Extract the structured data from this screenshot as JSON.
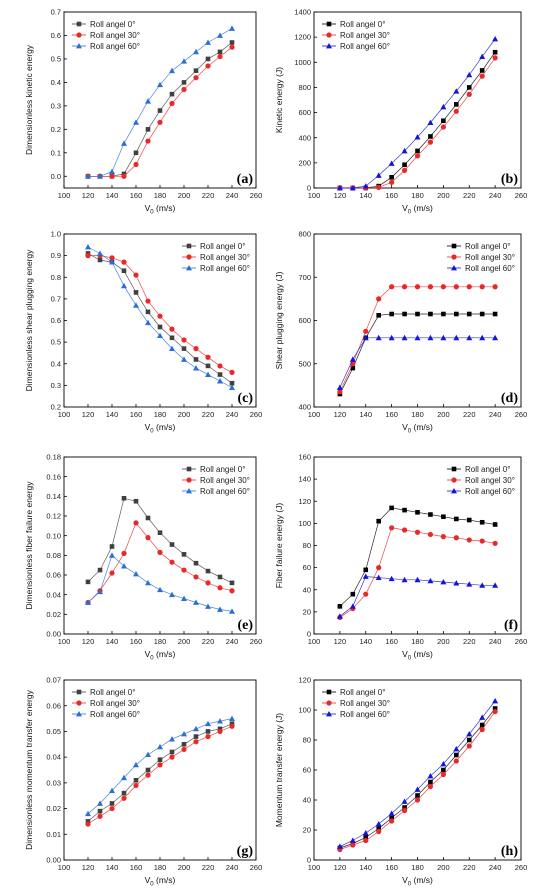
{
  "colors": {
    "roll0": "#404040",
    "roll30": "#e8282a",
    "roll60": "#2b6fd6",
    "roll60_d": "#1515d8"
  },
  "chart_data": [
    {
      "id": "a",
      "type": "line",
      "panel_label": "(a)",
      "xlabel": "V",
      "xlabel_sub": "0",
      "xlabel_unit": " (m/s)",
      "ylabel": "Dimensionless kinetic energy",
      "xlim": [
        100,
        260
      ],
      "ylim": [
        -0.05,
        0.7
      ],
      "xticks": [
        "100",
        "120",
        "140",
        "160",
        "180",
        "200",
        "220",
        "240",
        "260"
      ],
      "yticks": [
        "0.0",
        "0.1",
        "0.2",
        "0.3",
        "0.4",
        "0.5",
        "0.6",
        "0.7"
      ],
      "legend_position": "top-left",
      "marker_style": "filled",
      "series": [
        {
          "name": "Roll angel 0°",
          "marker": "square",
          "x": [
            120,
            130,
            140,
            150,
            160,
            170,
            180,
            190,
            200,
            210,
            220,
            230,
            240
          ],
          "y": [
            0,
            0,
            0,
            0.01,
            0.1,
            0.2,
            0.28,
            0.35,
            0.4,
            0.45,
            0.5,
            0.53,
            0.57
          ]
        },
        {
          "name": "Roll angel 30°",
          "marker": "circle",
          "x": [
            120,
            130,
            140,
            150,
            160,
            170,
            180,
            190,
            200,
            210,
            220,
            230,
            240
          ],
          "y": [
            0,
            0,
            0,
            0,
            0.05,
            0.15,
            0.23,
            0.31,
            0.37,
            0.42,
            0.47,
            0.51,
            0.55
          ]
        },
        {
          "name": "Roll angel 60°",
          "marker": "triangle",
          "x": [
            120,
            130,
            140,
            150,
            160,
            170,
            180,
            190,
            200,
            210,
            220,
            230,
            240
          ],
          "y": [
            0,
            0,
            0.02,
            0.14,
            0.23,
            0.32,
            0.39,
            0.45,
            0.49,
            0.53,
            0.57,
            0.6,
            0.63
          ]
        }
      ]
    },
    {
      "id": "b",
      "type": "line",
      "panel_label": "(b)",
      "xlabel": "V",
      "xlabel_sub": "0",
      "xlabel_unit": " (m/s)",
      "ylabel": "Kinetic energy (J)",
      "xlim": [
        100,
        260
      ],
      "ylim": [
        0,
        1400
      ],
      "xticks": [
        "100",
        "120",
        "140",
        "160",
        "180",
        "200",
        "220",
        "240",
        "260"
      ],
      "yticks": [
        "0",
        "200",
        "400",
        "600",
        "800",
        "1000",
        "1200",
        "1400"
      ],
      "legend_position": "top-left",
      "marker_style": "dark",
      "series": [
        {
          "name": "Roll angel 0°",
          "marker": "square",
          "x": [
            120,
            130,
            140,
            150,
            160,
            170,
            180,
            190,
            200,
            210,
            220,
            230,
            240
          ],
          "y": [
            0,
            0,
            0,
            15,
            85,
            185,
            295,
            410,
            535,
            665,
            800,
            935,
            1080
          ]
        },
        {
          "name": "Roll angel 30°",
          "marker": "circle",
          "x": [
            120,
            130,
            140,
            150,
            160,
            170,
            180,
            190,
            200,
            210,
            220,
            230,
            240
          ],
          "y": [
            0,
            0,
            0,
            5,
            45,
            140,
            255,
            365,
            485,
            610,
            745,
            890,
            1035
          ]
        },
        {
          "name": "Roll angel 60°",
          "marker": "triangle",
          "x": [
            120,
            130,
            140,
            150,
            160,
            170,
            180,
            190,
            200,
            210,
            220,
            230,
            240
          ],
          "y": [
            0,
            0,
            15,
            100,
            195,
            295,
            405,
            520,
            645,
            770,
            900,
            1045,
            1185
          ]
        }
      ]
    },
    {
      "id": "c",
      "type": "line",
      "panel_label": "(c)",
      "xlabel": "V",
      "xlabel_sub": "0",
      "xlabel_unit": " (m/s)",
      "ylabel": "Dimensionless shear plugging energy",
      "xlim": [
        100,
        260
      ],
      "ylim": [
        0.2,
        1.0
      ],
      "xticks": [
        "100",
        "120",
        "140",
        "160",
        "180",
        "200",
        "220",
        "240",
        "260"
      ],
      "yticks": [
        "0.2",
        "0.3",
        "0.4",
        "0.5",
        "0.6",
        "0.7",
        "0.8",
        "0.9",
        "1.0"
      ],
      "legend_position": "top-right",
      "marker_style": "filled",
      "series": [
        {
          "name": "Roll angel 0°",
          "marker": "square",
          "x": [
            120,
            130,
            140,
            150,
            160,
            170,
            180,
            190,
            200,
            210,
            220,
            230,
            240
          ],
          "y": [
            0.91,
            0.88,
            0.87,
            0.83,
            0.73,
            0.64,
            0.57,
            0.52,
            0.47,
            0.42,
            0.39,
            0.35,
            0.31
          ]
        },
        {
          "name": "Roll angel 30°",
          "marker": "circle",
          "x": [
            120,
            130,
            140,
            150,
            160,
            170,
            180,
            190,
            200,
            210,
            220,
            230,
            240
          ],
          "y": [
            0.9,
            0.9,
            0.89,
            0.87,
            0.81,
            0.69,
            0.62,
            0.56,
            0.51,
            0.47,
            0.43,
            0.39,
            0.36
          ]
        },
        {
          "name": "Roll angel 60°",
          "marker": "triangle",
          "x": [
            120,
            130,
            140,
            150,
            160,
            170,
            180,
            190,
            200,
            210,
            220,
            230,
            240
          ],
          "y": [
            0.94,
            0.91,
            0.87,
            0.76,
            0.67,
            0.59,
            0.53,
            0.47,
            0.42,
            0.38,
            0.35,
            0.32,
            0.29
          ]
        }
      ]
    },
    {
      "id": "d",
      "type": "line",
      "panel_label": "(d)",
      "xlabel": "V",
      "xlabel_sub": "0",
      "xlabel_unit": " (m/s)",
      "ylabel": "Shear plugging energy (J)",
      "xlim": [
        100,
        260
      ],
      "ylim": [
        400,
        800
      ],
      "xticks": [
        "100",
        "120",
        "140",
        "160",
        "180",
        "200",
        "220",
        "240",
        "260"
      ],
      "yticks": [
        "400",
        "500",
        "600",
        "700",
        "800"
      ],
      "legend_position": "top-right",
      "marker_style": "dark",
      "series": [
        {
          "name": "Roll angel 0°",
          "marker": "square",
          "x": [
            120,
            130,
            140,
            150,
            160,
            170,
            180,
            190,
            200,
            210,
            220,
            230,
            240
          ],
          "y": [
            430,
            490,
            560,
            612,
            615,
            615,
            615,
            615,
            615,
            615,
            615,
            615,
            615
          ]
        },
        {
          "name": "Roll angel 30°",
          "marker": "circle",
          "x": [
            120,
            130,
            140,
            150,
            160,
            170,
            180,
            190,
            200,
            210,
            220,
            230,
            240
          ],
          "y": [
            435,
            500,
            575,
            650,
            678,
            678,
            678,
            678,
            678,
            678,
            678,
            678,
            678
          ]
        },
        {
          "name": "Roll angel 60°",
          "marker": "triangle",
          "x": [
            120,
            130,
            140,
            150,
            160,
            170,
            180,
            190,
            200,
            210,
            220,
            230,
            240
          ],
          "y": [
            445,
            510,
            560,
            560,
            560,
            560,
            560,
            560,
            560,
            560,
            560,
            560,
            560
          ]
        }
      ]
    },
    {
      "id": "e",
      "type": "line",
      "panel_label": "(e)",
      "xlabel": "V",
      "xlabel_sub": "0",
      "xlabel_unit": " (m/s)",
      "ylabel": "Dimensionless fiber failure energy",
      "xlim": [
        100,
        260
      ],
      "ylim": [
        0.0,
        0.18
      ],
      "xticks": [
        "100",
        "120",
        "140",
        "160",
        "180",
        "200",
        "220",
        "240",
        "260"
      ],
      "yticks": [
        "0.00",
        "0.02",
        "0.04",
        "0.06",
        "0.08",
        "0.10",
        "0.12",
        "0.14",
        "0.16",
        "0.18"
      ],
      "legend_position": "top-right",
      "marker_style": "filled",
      "series": [
        {
          "name": "Roll angel 0°",
          "marker": "square",
          "x": [
            120,
            130,
            140,
            150,
            160,
            170,
            180,
            190,
            200,
            210,
            220,
            230,
            240
          ],
          "y": [
            0.053,
            0.065,
            0.089,
            0.138,
            0.135,
            0.118,
            0.103,
            0.091,
            0.081,
            0.072,
            0.064,
            0.058,
            0.052
          ]
        },
        {
          "name": "Roll angel 30°",
          "marker": "circle",
          "x": [
            120,
            130,
            140,
            150,
            160,
            170,
            180,
            190,
            200,
            210,
            220,
            230,
            240
          ],
          "y": [
            0.032,
            0.044,
            0.062,
            0.082,
            0.113,
            0.098,
            0.083,
            0.073,
            0.065,
            0.058,
            0.052,
            0.047,
            0.044
          ]
        },
        {
          "name": "Roll angel 60°",
          "marker": "triangle",
          "x": [
            120,
            130,
            140,
            150,
            160,
            170,
            180,
            190,
            200,
            210,
            220,
            230,
            240
          ],
          "y": [
            0.032,
            0.043,
            0.08,
            0.069,
            0.061,
            0.052,
            0.045,
            0.04,
            0.036,
            0.032,
            0.028,
            0.025,
            0.023
          ]
        }
      ]
    },
    {
      "id": "f",
      "type": "line",
      "panel_label": "(f)",
      "xlabel": "V",
      "xlabel_sub": "0",
      "xlabel_unit": " (m/s)",
      "ylabel": "Fiber failure energy (J)",
      "xlim": [
        100,
        260
      ],
      "ylim": [
        0,
        160
      ],
      "xticks": [
        "100",
        "120",
        "140",
        "160",
        "180",
        "200",
        "220",
        "240",
        "260"
      ],
      "yticks": [
        "0",
        "20",
        "40",
        "60",
        "80",
        "100",
        "120",
        "140",
        "160"
      ],
      "legend_position": "top-right",
      "marker_style": "dark",
      "series": [
        {
          "name": "Roll angel 0°",
          "marker": "square",
          "x": [
            120,
            130,
            140,
            150,
            160,
            170,
            180,
            190,
            200,
            210,
            220,
            230,
            240
          ],
          "y": [
            25,
            36,
            58,
            102,
            114,
            112,
            110,
            108,
            106,
            104,
            103,
            101,
            99
          ]
        },
        {
          "name": "Roll angel 30°",
          "marker": "circle",
          "x": [
            120,
            130,
            140,
            150,
            160,
            170,
            180,
            190,
            200,
            210,
            220,
            230,
            240
          ],
          "y": [
            15,
            23,
            36,
            60,
            96,
            94,
            92,
            90,
            88,
            87,
            85,
            84,
            82
          ]
        },
        {
          "name": "Roll angel 60°",
          "marker": "triangle",
          "x": [
            120,
            130,
            140,
            150,
            160,
            170,
            180,
            190,
            200,
            210,
            220,
            230,
            240
          ],
          "y": [
            16,
            25,
            52,
            51,
            50,
            49,
            49,
            48,
            47,
            46,
            45,
            44,
            44
          ]
        }
      ]
    },
    {
      "id": "g",
      "type": "line",
      "panel_label": "(g)",
      "xlabel": "V",
      "xlabel_sub": "0",
      "xlabel_unit": " (m/s)",
      "ylabel": "Dimensionless momentum transfer energy",
      "xlim": [
        100,
        260
      ],
      "ylim": [
        0.0,
        0.07
      ],
      "xticks": [
        "100",
        "120",
        "140",
        "160",
        "180",
        "200",
        "220",
        "240",
        "260"
      ],
      "yticks": [
        "0.00",
        "0.01",
        "0.02",
        "0.03",
        "0.04",
        "0.05",
        "0.06",
        "0.07"
      ],
      "legend_position": "top-left",
      "marker_style": "filled",
      "series": [
        {
          "name": "Roll angel 0°",
          "marker": "square",
          "x": [
            120,
            130,
            140,
            150,
            160,
            170,
            180,
            190,
            200,
            210,
            220,
            230,
            240
          ],
          "y": [
            0.015,
            0.019,
            0.022,
            0.026,
            0.031,
            0.035,
            0.039,
            0.042,
            0.045,
            0.048,
            0.05,
            0.051,
            0.053
          ]
        },
        {
          "name": "Roll angel 30°",
          "marker": "circle",
          "x": [
            120,
            130,
            140,
            150,
            160,
            170,
            180,
            190,
            200,
            210,
            220,
            230,
            240
          ],
          "y": [
            0.014,
            0.017,
            0.02,
            0.024,
            0.029,
            0.033,
            0.037,
            0.04,
            0.043,
            0.046,
            0.048,
            0.05,
            0.052
          ]
        },
        {
          "name": "Roll angel 60°",
          "marker": "triangle",
          "x": [
            120,
            130,
            140,
            150,
            160,
            170,
            180,
            190,
            200,
            210,
            220,
            230,
            240
          ],
          "y": [
            0.018,
            0.022,
            0.027,
            0.032,
            0.037,
            0.041,
            0.044,
            0.047,
            0.049,
            0.051,
            0.053,
            0.054,
            0.055
          ]
        }
      ]
    },
    {
      "id": "h",
      "type": "line",
      "panel_label": "(h)",
      "xlabel": "V",
      "xlabel_sub": "0",
      "xlabel_unit": " (m/s)",
      "ylabel": "Momentum transfer energy (J)",
      "xlim": [
        100,
        260
      ],
      "ylim": [
        0,
        120
      ],
      "xticks": [
        "100",
        "120",
        "140",
        "160",
        "180",
        "200",
        "220",
        "240",
        "260"
      ],
      "yticks": [
        "0",
        "20",
        "40",
        "60",
        "80",
        "100",
        "120"
      ],
      "legend_position": "top-left",
      "marker_style": "dark",
      "series": [
        {
          "name": "Roll angel 0°",
          "marker": "square",
          "x": [
            120,
            130,
            140,
            150,
            160,
            170,
            180,
            190,
            200,
            210,
            220,
            230,
            240
          ],
          "y": [
            8,
            11,
            15,
            21,
            28,
            35,
            43,
            52,
            60,
            70,
            80,
            90,
            101
          ]
        },
        {
          "name": "Roll angel 30°",
          "marker": "circle",
          "x": [
            120,
            130,
            140,
            150,
            160,
            170,
            180,
            190,
            200,
            210,
            220,
            230,
            240
          ],
          "y": [
            7,
            10,
            13,
            19,
            26,
            33,
            40,
            49,
            57,
            66,
            76,
            87,
            99
          ]
        },
        {
          "name": "Roll angel 60°",
          "marker": "triangle",
          "x": [
            120,
            130,
            140,
            150,
            160,
            170,
            180,
            190,
            200,
            210,
            220,
            230,
            240
          ],
          "y": [
            9,
            13,
            18,
            24,
            31,
            39,
            47,
            56,
            64,
            74,
            84,
            95,
            106
          ]
        }
      ]
    }
  ]
}
